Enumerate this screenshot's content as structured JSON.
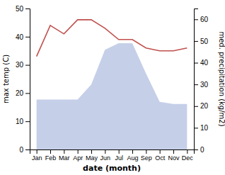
{
  "chart_data": {
    "type": "line",
    "categories": [
      "Jan",
      "Feb",
      "Mar",
      "Apr",
      "May",
      "Jun",
      "Jul",
      "Aug",
      "Sep",
      "Oct",
      "Nov",
      "Dec"
    ],
    "series": [
      {
        "type": "area",
        "axis": "y2",
        "color": "#c5cfe8",
        "values": [
          23,
          23,
          23,
          23,
          30,
          46,
          49,
          49,
          35,
          22,
          21,
          21
        ]
      },
      {
        "type": "line",
        "color": "#c0504d",
        "values": [
          33,
          44,
          41,
          46,
          46,
          43,
          39,
          39,
          36,
          35,
          35,
          36
        ]
      }
    ],
    "ylim": [
      0,
      50
    ],
    "yticks": [
      0,
      10,
      20,
      30,
      40,
      50
    ],
    "y2lim": [
      0,
      65
    ],
    "y2ticks": [
      0,
      10,
      20,
      30,
      40,
      50,
      60
    ],
    "xlabel": "date (month)",
    "ylabel": "max temp (C)",
    "y2label": "med. precipitation (kg/m2)",
    "grid": false
  }
}
